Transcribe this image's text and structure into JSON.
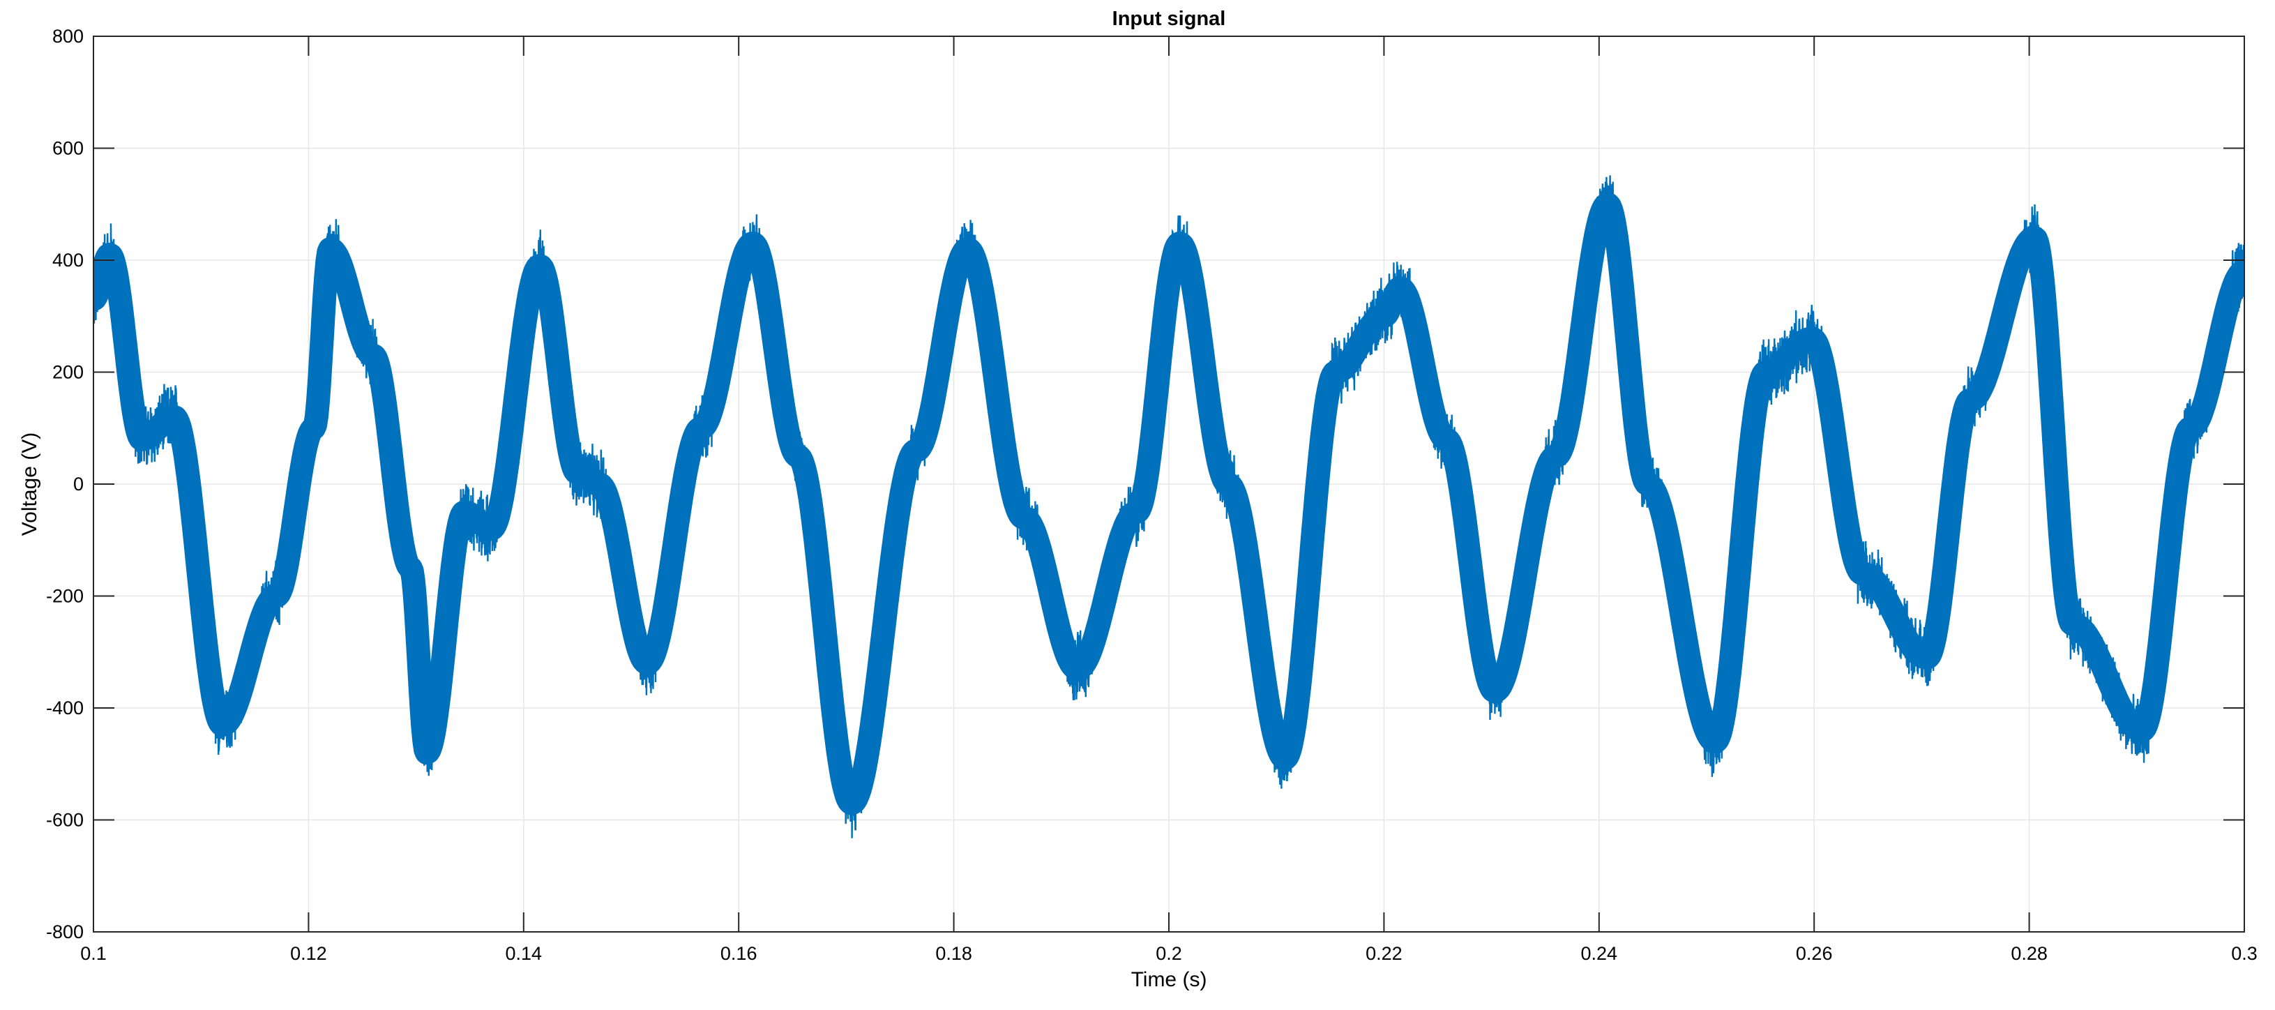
{
  "chart_data": {
    "type": "line",
    "title": "Input signal",
    "xlabel": "Time (s)",
    "ylabel": "Voltage (V)",
    "xlim": [
      0.1,
      0.3
    ],
    "ylim": [
      -800,
      800
    ],
    "grid": true,
    "x_ticks": [
      "0.1",
      "0.12",
      "0.14",
      "0.16",
      "0.18",
      "0.2",
      "0.22",
      "0.24",
      "0.26",
      "0.28",
      "0.3"
    ],
    "y_ticks": [
      "-800",
      "-600",
      "-400",
      "-200",
      "0",
      "200",
      "400",
      "600",
      "800"
    ],
    "series": [
      {
        "color": "#0072BD",
        "noise_amplitude": 70,
        "x": [
          0.1,
          0.1015,
          0.1045,
          0.1075,
          0.112,
          0.117,
          0.1205,
          0.122,
          0.126,
          0.1295,
          0.131,
          0.1345,
          0.137,
          0.1415,
          0.145,
          0.147,
          0.1515,
          0.1565,
          0.1613,
          0.1655,
          0.1705,
          0.1765,
          0.1813,
          0.1865,
          0.1915,
          0.197,
          0.201,
          0.2055,
          0.2108,
          0.2155,
          0.22,
          0.2215,
          0.2258,
          0.2303,
          0.236,
          0.2408,
          0.2445,
          0.2508,
          0.2555,
          0.2598,
          0.2645,
          0.2705,
          0.2745,
          0.2805,
          0.284,
          0.2905,
          0.295,
          0.3
        ],
        "values": [
          330,
          410,
          80,
          120,
          -430,
          -200,
          100,
          420,
          230,
          -150,
          -480,
          -50,
          -80,
          390,
          20,
          0,
          -320,
          100,
          430,
          50,
          -570,
          60,
          420,
          -60,
          -330,
          -50,
          430,
          0,
          -490,
          200,
          300,
          350,
          80,
          -370,
          50,
          500,
          0,
          -460,
          200,
          260,
          -160,
          -310,
          150,
          440,
          -250,
          -440,
          100,
          380
        ]
      }
    ]
  }
}
